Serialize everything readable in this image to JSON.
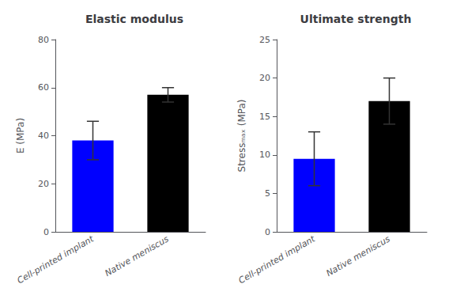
{
  "chart_data": [
    {
      "type": "bar",
      "title": "Elastic modulus",
      "y_label": "E (MPa)",
      "categories": [
        "Cell-printed implant",
        "Native meniscus"
      ],
      "values": [
        38,
        57
      ],
      "errors": [
        8,
        3
      ],
      "colors": [
        "#0000FF",
        "#000000"
      ],
      "ylim": [
        0,
        80
      ],
      "yticks": [
        0,
        20,
        40,
        60,
        80
      ],
      "grid": false
    },
    {
      "type": "bar",
      "title": "Ultimate strength",
      "y_label": "Stressₘₐₓ (MPa)",
      "categories": [
        "Cell-printed implant",
        "Native meniscus"
      ],
      "values": [
        9.5,
        17
      ],
      "errors": [
        3.5,
        3
      ],
      "colors": [
        "#0000FF",
        "#000000"
      ],
      "ylim": [
        0,
        25
      ],
      "yticks": [
        0,
        5,
        10,
        15,
        20,
        25
      ],
      "grid": false
    }
  ]
}
